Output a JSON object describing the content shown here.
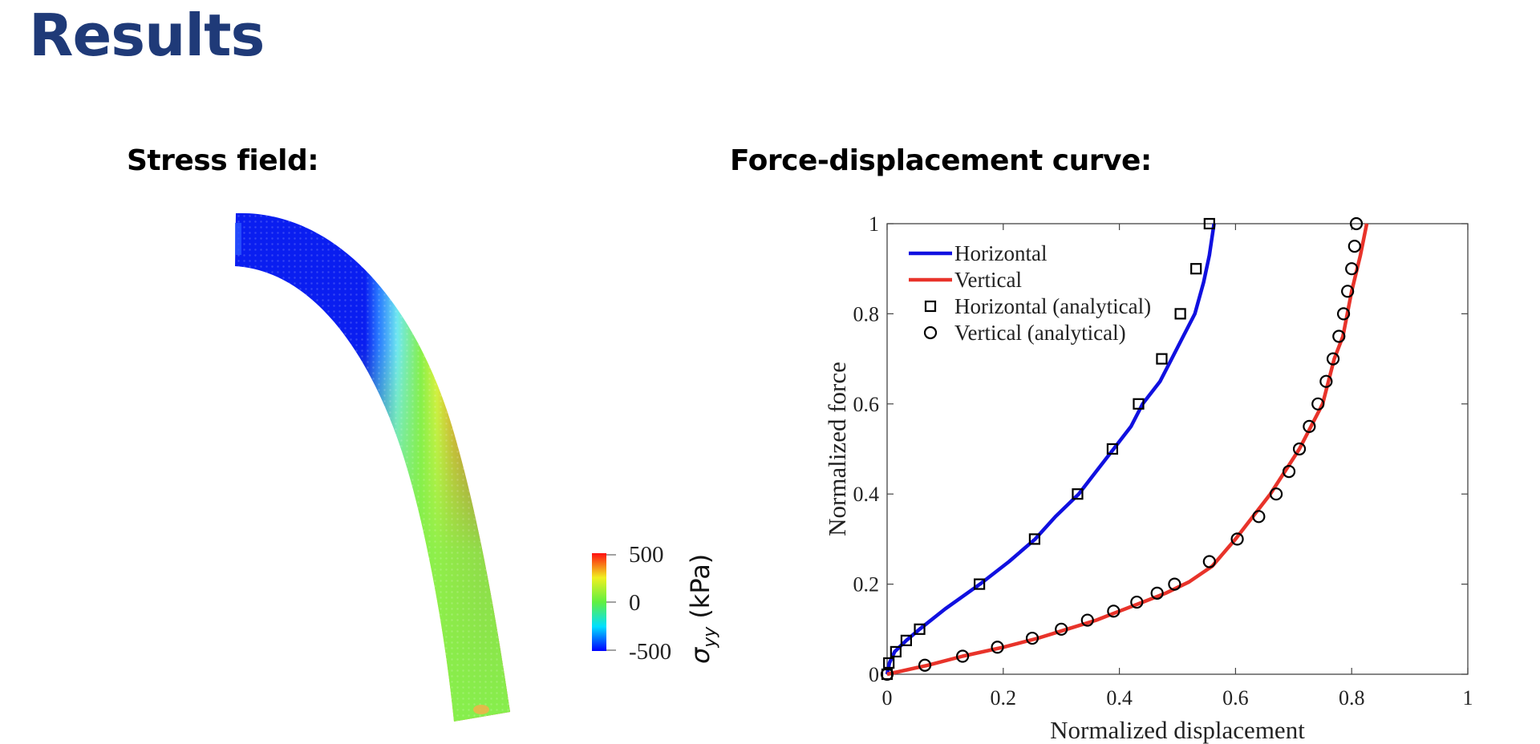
{
  "title": "Results",
  "left_panel": {
    "heading": "Stress field:",
    "colorbar": {
      "ticks": [
        "500",
        "0",
        "-500"
      ],
      "label_symbol": "σ",
      "label_subscript": "yy",
      "label_unit": "(kPa)",
      "colormap": [
        "#0000ff",
        "#00ffff",
        "#00ff00",
        "#ffff00",
        "#ff0000"
      ]
    }
  },
  "right_panel": {
    "heading": "Force-displacement curve:"
  },
  "chart_data": {
    "type": "line",
    "xlabel": "Normalized displacement",
    "ylabel": "Normalized force",
    "xlim": [
      0,
      1
    ],
    "ylim": [
      0,
      1
    ],
    "xticks": [
      "0",
      "0.2",
      "0.4",
      "0.6",
      "0.8",
      "1"
    ],
    "yticks": [
      "0",
      "0.2",
      "0.4",
      "0.6",
      "0.8",
      "1"
    ],
    "legend_position": "top-left",
    "series": [
      {
        "name": "Horizontal",
        "kind": "line",
        "color": "#1010e0",
        "x": [
          0,
          0.004,
          0.013,
          0.033,
          0.056,
          0.1,
          0.16,
          0.21,
          0.255,
          0.29,
          0.33,
          0.36,
          0.39,
          0.42,
          0.44,
          0.47,
          0.49,
          0.51,
          0.53,
          0.545,
          0.555,
          0.563
        ],
        "y": [
          0,
          0.025,
          0.05,
          0.075,
          0.1,
          0.145,
          0.2,
          0.25,
          0.3,
          0.35,
          0.4,
          0.45,
          0.5,
          0.55,
          0.6,
          0.65,
          0.7,
          0.75,
          0.8,
          0.87,
          0.93,
          1.0
        ]
      },
      {
        "name": "Vertical",
        "kind": "line",
        "color": "#e8332a",
        "x": [
          0,
          0.07,
          0.13,
          0.2,
          0.26,
          0.31,
          0.36,
          0.4,
          0.44,
          0.48,
          0.52,
          0.56,
          0.6,
          0.63,
          0.66,
          0.685,
          0.71,
          0.73,
          0.75,
          0.77,
          0.785,
          0.8,
          0.815,
          0.826
        ],
        "y": [
          0,
          0.02,
          0.04,
          0.06,
          0.08,
          0.1,
          0.12,
          0.14,
          0.16,
          0.18,
          0.205,
          0.24,
          0.3,
          0.35,
          0.4,
          0.45,
          0.5,
          0.55,
          0.6,
          0.7,
          0.75,
          0.85,
          0.93,
          1.0
        ]
      },
      {
        "name": "Horizontal (analytical)",
        "kind": "marker",
        "marker": "square",
        "x": [
          0.0,
          0.003,
          0.015,
          0.033,
          0.056,
          0.159,
          0.254,
          0.328,
          0.388,
          0.433,
          0.473,
          0.505,
          0.532,
          0.555
        ],
        "y": [
          0.0,
          0.025,
          0.05,
          0.075,
          0.1,
          0.2,
          0.3,
          0.4,
          0.5,
          0.6,
          0.7,
          0.8,
          0.9,
          1.0
        ]
      },
      {
        "name": "Vertical (analytical)",
        "kind": "marker",
        "marker": "circle",
        "x": [
          0.0,
          0.065,
          0.13,
          0.19,
          0.25,
          0.3,
          0.345,
          0.39,
          0.43,
          0.465,
          0.495,
          0.555,
          0.603,
          0.64,
          0.67,
          0.692,
          0.71,
          0.727,
          0.742,
          0.756,
          0.768,
          0.778,
          0.786,
          0.793,
          0.8,
          0.805,
          0.808
        ],
        "y": [
          0.0,
          0.02,
          0.04,
          0.06,
          0.08,
          0.1,
          0.12,
          0.14,
          0.16,
          0.18,
          0.2,
          0.25,
          0.3,
          0.35,
          0.4,
          0.45,
          0.5,
          0.55,
          0.6,
          0.65,
          0.7,
          0.75,
          0.8,
          0.85,
          0.9,
          0.95,
          1.0
        ]
      }
    ]
  }
}
